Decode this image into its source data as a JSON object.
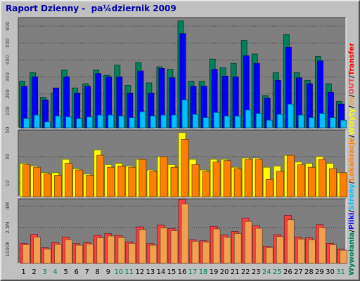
{
  "title": "Raport Dzienny -  pa¼dziernik 2009",
  "colors": {
    "background": "#c0c0c0",
    "panel": "#7f7f7f",
    "title": "#0000a8",
    "hits": "#00805b",
    "files": "#0000ff",
    "pages": "#00c0ff",
    "visits": "#ffff00",
    "sites": "#ff8000",
    "kbytes": "#ff4040",
    "kbytes_out": "#f0a050",
    "weekend": "#00805b",
    "weekday": "#000000"
  },
  "legend_right": [
    {
      "text": "Wywołania",
      "color": "#00805b",
      "key": "hits"
    },
    {
      "text": "/",
      "color": "#000000",
      "key": "sep"
    },
    {
      "text": "Pliki",
      "color": "#0000ff",
      "key": "files"
    },
    {
      "text": "/",
      "color": "#000000",
      "key": "sep"
    },
    {
      "text": "Strony",
      "color": "#00c0ff",
      "key": "pages"
    },
    {
      "text": "/",
      "color": "#000000",
      "key": "sep"
    },
    {
      "text": "Lokalizacje",
      "color": "#ff8000",
      "key": "sites"
    },
    {
      "text": "/",
      "color": "#000000",
      "key": "sep"
    },
    {
      "text": "Wizyty",
      "color": "#ffff00",
      "key": "visits"
    },
    {
      "text": "/",
      "color": "#000000",
      "key": "sep"
    },
    {
      "text": "IN",
      "color": "#f0a050",
      "key": "in"
    },
    {
      "text": "/",
      "color": "#000000",
      "key": "sep"
    },
    {
      "text": "OUT",
      "color": "#ff4040",
      "key": "out"
    },
    {
      "text": "/",
      "color": "#000000",
      "key": "sep"
    },
    {
      "text": "Transfer",
      "color": "#ff0000",
      "key": "transfer"
    }
  ],
  "chart_data": [
    {
      "type": "bar",
      "panel": "hits_files_pages",
      "ylim": [
        0,
        650
      ],
      "ticks": [
        {
          "v": 100,
          "label": "100"
        },
        {
          "v": 200,
          "label": "200"
        },
        {
          "v": 300,
          "label": "300"
        },
        {
          "v": 400,
          "label": "400"
        },
        {
          "v": 500,
          "label": "500"
        },
        {
          "v": 600,
          "label": "600"
        }
      ],
      "categories": [
        "1",
        "2",
        "3",
        "4",
        "5",
        "6",
        "7",
        "8",
        "9",
        "10",
        "11",
        "12",
        "13",
        "14",
        "15",
        "16",
        "17",
        "18",
        "19",
        "20",
        "21",
        "22",
        "23",
        "24",
        "25",
        "26",
        "27",
        "28",
        "29",
        "30",
        "31"
      ],
      "weekend": [
        false,
        false,
        true,
        true,
        false,
        false,
        false,
        false,
        false,
        true,
        true,
        false,
        false,
        false,
        false,
        false,
        true,
        true,
        false,
        false,
        false,
        false,
        false,
        true,
        true,
        false,
        false,
        false,
        false,
        false,
        true
      ],
      "series": [
        {
          "name": "Wywołania",
          "key": "hits",
          "values": [
            275,
            325,
            180,
            205,
            340,
            235,
            260,
            340,
            310,
            370,
            250,
            385,
            265,
            360,
            345,
            630,
            275,
            275,
            405,
            355,
            380,
            515,
            435,
            190,
            325,
            550,
            325,
            280,
            420,
            260,
            155
          ]
        },
        {
          "name": "Pliki",
          "key": "files",
          "values": [
            245,
            300,
            165,
            235,
            300,
            205,
            245,
            320,
            300,
            300,
            205,
            335,
            205,
            350,
            295,
            555,
            245,
            245,
            345,
            305,
            300,
            425,
            380,
            175,
            280,
            475,
            295,
            260,
            395,
            210,
            140
          ]
        },
        {
          "name": "Strony",
          "key": "pages",
          "values": [
            55,
            75,
            35,
            70,
            65,
            55,
            65,
            75,
            75,
            70,
            60,
            95,
            70,
            75,
            75,
            165,
            80,
            60,
            90,
            70,
            70,
            105,
            85,
            45,
            80,
            140,
            75,
            60,
            85,
            60,
            45
          ]
        }
      ]
    },
    {
      "type": "bar",
      "panel": "visits_sites",
      "ylim": [
        0,
        50
      ],
      "ticks": [
        {
          "v": 10,
          "label": "10"
        },
        {
          "v": 30,
          "label": "30"
        },
        {
          "v": 50,
          "label": "50"
        }
      ],
      "categories": [
        "1",
        "2",
        "3",
        "4",
        "5",
        "6",
        "7",
        "8",
        "9",
        "10",
        "11",
        "12",
        "13",
        "14",
        "15",
        "16",
        "17",
        "18",
        "19",
        "20",
        "21",
        "22",
        "23",
        "24",
        "25",
        "26",
        "27",
        "28",
        "29",
        "30",
        "31"
      ],
      "series": [
        {
          "name": "Wizyty",
          "key": "visits",
          "values": [
            25,
            23,
            18,
            18,
            28,
            21,
            17,
            35,
            24,
            25,
            23,
            28,
            20,
            30,
            24,
            48,
            28,
            20,
            28,
            28,
            22,
            29,
            29,
            22,
            23,
            31,
            26,
            25,
            30,
            25,
            18
          ]
        },
        {
          "name": "Lokalizacje",
          "key": "sites",
          "values": [
            24,
            22,
            17,
            16,
            25,
            20,
            16,
            31,
            22,
            23,
            22,
            28,
            19,
            30,
            22,
            43,
            24,
            19,
            26,
            27,
            21,
            28,
            28,
            13,
            19,
            31,
            24,
            22,
            28,
            21,
            18
          ]
        }
      ]
    },
    {
      "type": "bar",
      "panel": "transfer",
      "ylim": [
        0,
        4500
      ],
      "ticks": [
        {
          "v": 1000,
          "label": "1000k"
        },
        {
          "v": 2500,
          "label": "2.5M"
        },
        {
          "v": 4000,
          "label": "4M"
        }
      ],
      "categories": [
        "1",
        "2",
        "3",
        "4",
        "5",
        "6",
        "7",
        "8",
        "9",
        "10",
        "11",
        "12",
        "13",
        "14",
        "15",
        "16",
        "17",
        "18",
        "19",
        "20",
        "21",
        "22",
        "23",
        "24",
        "25",
        "26",
        "27",
        "28",
        "29",
        "30",
        "31"
      ],
      "series": [
        {
          "name": "OUT",
          "key": "kbytes",
          "values": [
            1400,
            2020,
            1090,
            1450,
            1840,
            1380,
            1450,
            1960,
            2070,
            1950,
            1500,
            2540,
            1380,
            2680,
            2420,
            4450,
            1650,
            1580,
            2580,
            1980,
            2220,
            3160,
            2630,
            1200,
            2000,
            3350,
            1830,
            1780,
            2700,
            1400,
            1000
          ]
        },
        {
          "name": "IN",
          "key": "kbytes_out",
          "values": [
            1300,
            1840,
            1000,
            1330,
            1660,
            1270,
            1350,
            1780,
            1910,
            1800,
            1400,
            2360,
            1270,
            2470,
            2270,
            4150,
            1550,
            1480,
            2400,
            1820,
            2080,
            2930,
            2450,
            1110,
            1880,
            3050,
            1700,
            1650,
            2500,
            1300,
            920
          ]
        }
      ]
    }
  ]
}
